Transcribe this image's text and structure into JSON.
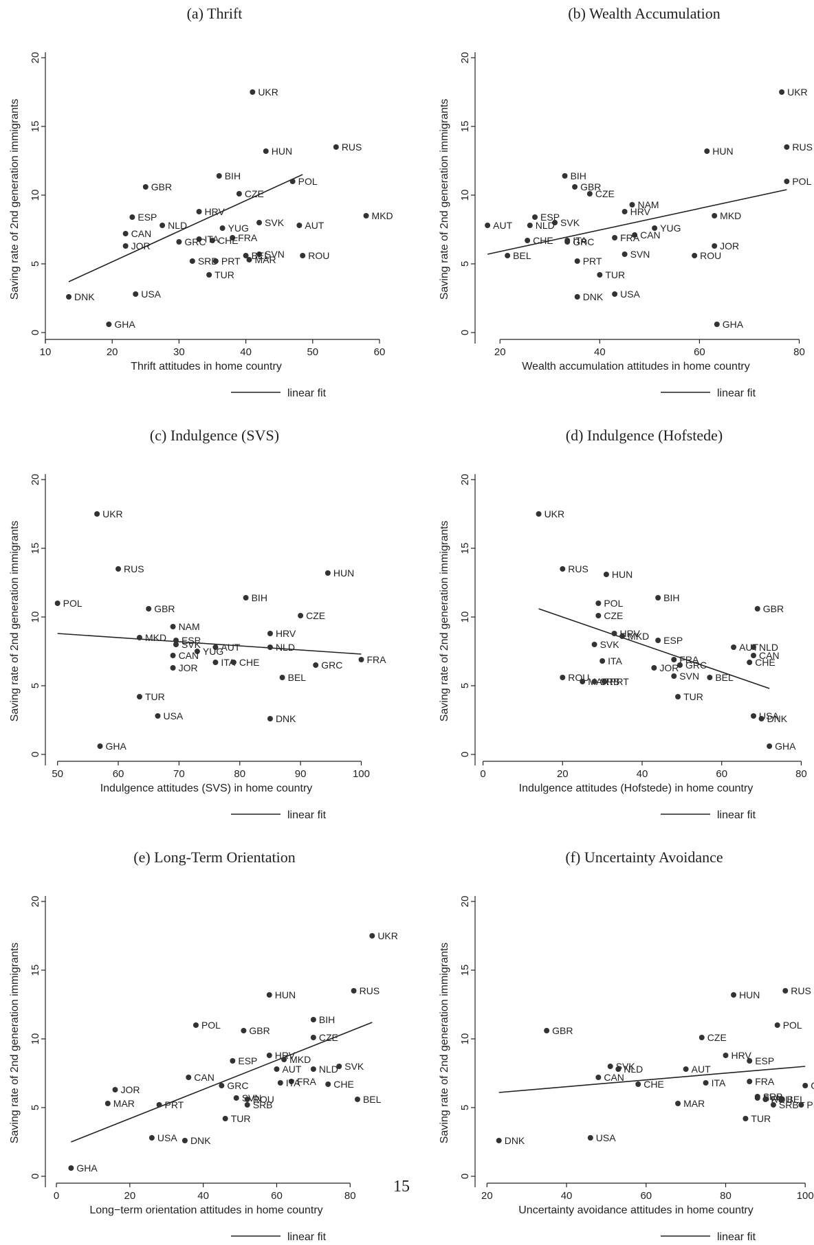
{
  "page_number": "15",
  "legend_label": "linear fit",
  "chart_data": [
    {
      "type": "scatter",
      "title": "(a) Thrift",
      "xlabel": "Thrift attitudes in home country",
      "ylabel": "Saving rate of 2nd generation immigrants",
      "xlim": [
        10,
        60
      ],
      "ylim": [
        0,
        20
      ],
      "xticks": [
        10,
        20,
        30,
        40,
        50,
        60
      ],
      "yticks": [
        0,
        5,
        10,
        15,
        20
      ],
      "fit": [
        [
          13.5,
          3.7
        ],
        [
          48.5,
          11.5
        ]
      ],
      "points": [
        {
          "label": "UKR",
          "x": 41,
          "y": 17.5
        },
        {
          "label": "RUS",
          "x": 53.5,
          "y": 13.5
        },
        {
          "label": "HUN",
          "x": 43,
          "y": 13.2
        },
        {
          "label": "BIH",
          "x": 36,
          "y": 11.4
        },
        {
          "label": "POL",
          "x": 47,
          "y": 11.0
        },
        {
          "label": "GBR",
          "x": 25,
          "y": 10.6
        },
        {
          "label": "CZE",
          "x": 39,
          "y": 10.1
        },
        {
          "label": "HRV",
          "x": 33,
          "y": 8.8
        },
        {
          "label": "MKD",
          "x": 58,
          "y": 8.5
        },
        {
          "label": "ESP",
          "x": 23,
          "y": 8.4
        },
        {
          "label": "SVK",
          "x": 42,
          "y": 8.0
        },
        {
          "label": "NLD",
          "x": 27.5,
          "y": 7.8
        },
        {
          "label": "AUT",
          "x": 48,
          "y": 7.8
        },
        {
          "label": "YUG",
          "x": 36.5,
          "y": 7.6
        },
        {
          "label": "CAN",
          "x": 22,
          "y": 7.2
        },
        {
          "label": "FRA",
          "x": 38,
          "y": 6.9
        },
        {
          "label": "ITA",
          "x": 33,
          "y": 6.8
        },
        {
          "label": "CHE",
          "x": 35,
          "y": 6.7
        },
        {
          "label": "GRC",
          "x": 30,
          "y": 6.6
        },
        {
          "label": "JOR",
          "x": 22,
          "y": 6.3
        },
        {
          "label": "SVN",
          "x": 42,
          "y": 5.7
        },
        {
          "label": "BEL",
          "x": 40,
          "y": 5.6
        },
        {
          "label": "ROU",
          "x": 48.5,
          "y": 5.6
        },
        {
          "label": "MAR",
          "x": 40.5,
          "y": 5.3
        },
        {
          "label": "SRB",
          "x": 32,
          "y": 5.2
        },
        {
          "label": "PRT",
          "x": 35.5,
          "y": 5.2
        },
        {
          "label": "TUR",
          "x": 34.5,
          "y": 4.2
        },
        {
          "label": "USA",
          "x": 23.5,
          "y": 2.8
        },
        {
          "label": "DNK",
          "x": 13.5,
          "y": 2.6
        },
        {
          "label": "GHA",
          "x": 19.5,
          "y": 0.6
        }
      ]
    },
    {
      "type": "scatter",
      "title": "(b) Wealth Accumulation",
      "xlabel": "Wealth accumulation attitudes in home country",
      "ylabel": "Saving rate of 2nd generation immigrants",
      "xlim": [
        15,
        82
      ],
      "ylim": [
        0,
        20
      ],
      "xticks": [
        20,
        40,
        60,
        80
      ],
      "yticks": [
        0,
        5,
        10,
        15,
        20
      ],
      "fit": [
        [
          17.5,
          5.7
        ],
        [
          77.5,
          10.4
        ]
      ],
      "points": [
        {
          "label": "UKR",
          "x": 76.5,
          "y": 17.5
        },
        {
          "label": "RUS",
          "x": 77.5,
          "y": 13.5
        },
        {
          "label": "HUN",
          "x": 61.5,
          "y": 13.2
        },
        {
          "label": "POL",
          "x": 77.5,
          "y": 11.0
        },
        {
          "label": "BIH",
          "x": 33,
          "y": 11.4
        },
        {
          "label": "GBR",
          "x": 35,
          "y": 10.6
        },
        {
          "label": "CZE",
          "x": 38,
          "y": 10.1
        },
        {
          "label": "NAM",
          "x": 46.5,
          "y": 9.3
        },
        {
          "label": "HRV",
          "x": 45,
          "y": 8.8
        },
        {
          "label": "MKD",
          "x": 63,
          "y": 8.5
        },
        {
          "label": "ESP",
          "x": 27,
          "y": 8.4
        },
        {
          "label": "SVK",
          "x": 31,
          "y": 8.0
        },
        {
          "label": "NLD",
          "x": 26,
          "y": 7.8
        },
        {
          "label": "AUT",
          "x": 17.5,
          "y": 7.8
        },
        {
          "label": "YUG",
          "x": 51,
          "y": 7.6
        },
        {
          "label": "CAN",
          "x": 47,
          "y": 7.1
        },
        {
          "label": "FRA",
          "x": 43,
          "y": 6.9
        },
        {
          "label": "CHE",
          "x": 25.5,
          "y": 6.7
        },
        {
          "label": "ITA",
          "x": 33.5,
          "y": 6.7
        },
        {
          "label": "GRC",
          "x": 33.5,
          "y": 6.6
        },
        {
          "label": "JOR",
          "x": 63,
          "y": 6.3
        },
        {
          "label": "SVN",
          "x": 45,
          "y": 5.7
        },
        {
          "label": "BEL",
          "x": 21.5,
          "y": 5.6
        },
        {
          "label": "ROU",
          "x": 59,
          "y": 5.6
        },
        {
          "label": "PRT",
          "x": 35.5,
          "y": 5.2
        },
        {
          "label": "TUR",
          "x": 40,
          "y": 4.2
        },
        {
          "label": "USA",
          "x": 43,
          "y": 2.8
        },
        {
          "label": "DNK",
          "x": 35.5,
          "y": 2.6
        },
        {
          "label": "GHA",
          "x": 63.5,
          "y": 0.6
        }
      ]
    },
    {
      "type": "scatter",
      "title": "(c) Indulgence (SVS)",
      "xlabel": "Indulgence attitudes (SVS) in home country",
      "ylabel": "Saving rate of 2nd generation immigrants",
      "xlim": [
        48,
        103
      ],
      "ylim": [
        0,
        20
      ],
      "xticks": [
        50,
        60,
        70,
        80,
        90,
        100
      ],
      "yticks": [
        0,
        5,
        10,
        15,
        20
      ],
      "fit": [
        [
          50,
          8.8
        ],
        [
          100,
          7.3
        ]
      ],
      "points": [
        {
          "label": "UKR",
          "x": 56.5,
          "y": 17.5
        },
        {
          "label": "RUS",
          "x": 60,
          "y": 13.5
        },
        {
          "label": "HUN",
          "x": 94.5,
          "y": 13.2
        },
        {
          "label": "BIH",
          "x": 81,
          "y": 11.4
        },
        {
          "label": "POL",
          "x": 50,
          "y": 11.0
        },
        {
          "label": "GBR",
          "x": 65,
          "y": 10.6
        },
        {
          "label": "CZE",
          "x": 90,
          "y": 10.1
        },
        {
          "label": "NAM",
          "x": 69,
          "y": 9.3
        },
        {
          "label": "HRV",
          "x": 85,
          "y": 8.8
        },
        {
          "label": "MKD",
          "x": 63.5,
          "y": 8.5
        },
        {
          "label": "ESP",
          "x": 69.5,
          "y": 8.3
        },
        {
          "label": "SVK",
          "x": 69.5,
          "y": 8.0
        },
        {
          "label": "NLD",
          "x": 85,
          "y": 7.8
        },
        {
          "label": "AUT",
          "x": 76,
          "y": 7.8
        },
        {
          "label": "YUG",
          "x": 73,
          "y": 7.5
        },
        {
          "label": "CAN",
          "x": 69,
          "y": 7.2
        },
        {
          "label": "FRA",
          "x": 100,
          "y": 6.9
        },
        {
          "label": "ITA",
          "x": 76,
          "y": 6.7
        },
        {
          "label": "CHE",
          "x": 79,
          "y": 6.7
        },
        {
          "label": "GRC",
          "x": 92.5,
          "y": 6.5
        },
        {
          "label": "JOR",
          "x": 69,
          "y": 6.3
        },
        {
          "label": "BEL",
          "x": 87,
          "y": 5.6
        },
        {
          "label": "TUR",
          "x": 63.5,
          "y": 4.2
        },
        {
          "label": "USA",
          "x": 66.5,
          "y": 2.8
        },
        {
          "label": "DNK",
          "x": 85,
          "y": 2.6
        },
        {
          "label": "GHA",
          "x": 57,
          "y": 0.6
        }
      ]
    },
    {
      "type": "scatter",
      "title": "(d) Indulgence (Hofstede)",
      "xlabel": "Indulgence attitudes (Hofstede) in home country",
      "ylabel": "Saving rate of 2nd generation immigrants",
      "xlim": [
        -2,
        82
      ],
      "ylim": [
        0,
        20
      ],
      "xticks": [
        0,
        20,
        40,
        60,
        80
      ],
      "yticks": [
        0,
        5,
        10,
        15,
        20
      ],
      "fit": [
        [
          14,
          10.6
        ],
        [
          72,
          4.8
        ]
      ],
      "points": [
        {
          "label": "UKR",
          "x": 14,
          "y": 17.5
        },
        {
          "label": "RUS",
          "x": 20,
          "y": 13.5
        },
        {
          "label": "HUN",
          "x": 31,
          "y": 13.1
        },
        {
          "label": "BIH",
          "x": 44,
          "y": 11.4
        },
        {
          "label": "GBR",
          "x": 69,
          "y": 10.6
        },
        {
          "label": "POL",
          "x": 29,
          "y": 11.0
        },
        {
          "label": "CZE",
          "x": 29,
          "y": 10.1
        },
        {
          "label": "HRV",
          "x": 33,
          "y": 8.8
        },
        {
          "label": "MKD",
          "x": 35,
          "y": 8.6
        },
        {
          "label": "ESP",
          "x": 44,
          "y": 8.3
        },
        {
          "label": "SVK",
          "x": 28,
          "y": 8.0
        },
        {
          "label": "AUT",
          "x": 63,
          "y": 7.8
        },
        {
          "label": "NLD",
          "x": 68,
          "y": 7.8
        },
        {
          "label": "CAN",
          "x": 68,
          "y": 7.2
        },
        {
          "label": "FRA",
          "x": 48,
          "y": 6.9
        },
        {
          "label": "ITA",
          "x": 30,
          "y": 6.8
        },
        {
          "label": "CHE",
          "x": 67,
          "y": 6.7
        },
        {
          "label": "GRC",
          "x": 49.5,
          "y": 6.5
        },
        {
          "label": "JOR",
          "x": 43,
          "y": 6.3
        },
        {
          "label": "SVN",
          "x": 48,
          "y": 5.7
        },
        {
          "label": "BEL",
          "x": 57,
          "y": 5.6
        },
        {
          "label": "ROU",
          "x": 20,
          "y": 5.6
        },
        {
          "label": "MAR",
          "x": 25,
          "y": 5.3
        },
        {
          "label": "SRB",
          "x": 28,
          "y": 5.3
        },
        {
          "label": "PRT",
          "x": 30.5,
          "y": 5.3
        },
        {
          "label": "TUR",
          "x": 49,
          "y": 4.2
        },
        {
          "label": "USA",
          "x": 68,
          "y": 2.8
        },
        {
          "label": "DNK",
          "x": 70,
          "y": 2.6
        },
        {
          "label": "GHA",
          "x": 72,
          "y": 0.6
        }
      ]
    },
    {
      "type": "scatter",
      "title": "(e) Long-Term Orientation",
      "xlabel": "Long−term orientation attitudes in home country",
      "ylabel": "Saving rate of 2nd generation immigrants",
      "xlim": [
        -3,
        88
      ],
      "ylim": [
        0,
        20
      ],
      "xticks": [
        0,
        20,
        40,
        60,
        80
      ],
      "yticks": [
        0,
        5,
        10,
        15,
        20
      ],
      "fit": [
        [
          4,
          2.5
        ],
        [
          86,
          11.2
        ]
      ],
      "points": [
        {
          "label": "UKR",
          "x": 86,
          "y": 17.5
        },
        {
          "label": "RUS",
          "x": 81,
          "y": 13.5
        },
        {
          "label": "HUN",
          "x": 58,
          "y": 13.2
        },
        {
          "label": "BIH",
          "x": 70,
          "y": 11.4
        },
        {
          "label": "POL",
          "x": 38,
          "y": 11.0
        },
        {
          "label": "GBR",
          "x": 51,
          "y": 10.6
        },
        {
          "label": "CZE",
          "x": 70,
          "y": 10.1
        },
        {
          "label": "HRV",
          "x": 58,
          "y": 8.8
        },
        {
          "label": "MKD",
          "x": 62,
          "y": 8.5
        },
        {
          "label": "ESP",
          "x": 48,
          "y": 8.4
        },
        {
          "label": "SVK",
          "x": 77,
          "y": 8.0
        },
        {
          "label": "AUT",
          "x": 60,
          "y": 7.8
        },
        {
          "label": "NLD",
          "x": 70,
          "y": 7.8
        },
        {
          "label": "CAN",
          "x": 36,
          "y": 7.2
        },
        {
          "label": "FRA",
          "x": 64,
          "y": 6.9
        },
        {
          "label": "ITA",
          "x": 61,
          "y": 6.8
        },
        {
          "label": "CHE",
          "x": 74,
          "y": 6.7
        },
        {
          "label": "GRC",
          "x": 45,
          "y": 6.6
        },
        {
          "label": "JOR",
          "x": 16,
          "y": 6.3
        },
        {
          "label": "SVN",
          "x": 49,
          "y": 5.7
        },
        {
          "label": "ROU",
          "x": 52,
          "y": 5.6
        },
        {
          "label": "BEL",
          "x": 82,
          "y": 5.6
        },
        {
          "label": "MAR",
          "x": 14,
          "y": 5.3
        },
        {
          "label": "SRB",
          "x": 52,
          "y": 5.2
        },
        {
          "label": "PRT",
          "x": 28,
          "y": 5.2
        },
        {
          "label": "TUR",
          "x": 46,
          "y": 4.2
        },
        {
          "label": "USA",
          "x": 26,
          "y": 2.8
        },
        {
          "label": "DNK",
          "x": 35,
          "y": 2.6
        },
        {
          "label": "GHA",
          "x": 4,
          "y": 0.6
        }
      ]
    },
    {
      "type": "scatter",
      "title": "(f) Uncertainty Avoidance",
      "xlabel": "Uncertainty avoidance attitudes in home country",
      "ylabel": "Saving rate of 2nd generation immigrants",
      "xlim": [
        17,
        101
      ],
      "ylim": [
        0,
        20
      ],
      "xticks": [
        20,
        40,
        60,
        80,
        100
      ],
      "yticks": [
        0,
        5,
        10,
        15,
        20
      ],
      "fit": [
        [
          23,
          6.1
        ],
        [
          100,
          8.0
        ]
      ],
      "points": [
        {
          "label": "RUS",
          "x": 95,
          "y": 13.5
        },
        {
          "label": "HUN",
          "x": 82,
          "y": 13.2
        },
        {
          "label": "POL",
          "x": 93,
          "y": 11.0
        },
        {
          "label": "GBR",
          "x": 35,
          "y": 10.6
        },
        {
          "label": "CZE",
          "x": 74,
          "y": 10.1
        },
        {
          "label": "HRV",
          "x": 80,
          "y": 8.8
        },
        {
          "label": "ESP",
          "x": 86,
          "y": 8.4
        },
        {
          "label": "SVK",
          "x": 51,
          "y": 8.0
        },
        {
          "label": "NLD",
          "x": 53,
          "y": 7.8
        },
        {
          "label": "AUT",
          "x": 70,
          "y": 7.8
        },
        {
          "label": "CAN",
          "x": 48,
          "y": 7.2
        },
        {
          "label": "FRA",
          "x": 86,
          "y": 6.9
        },
        {
          "label": "ITA",
          "x": 75,
          "y": 6.8
        },
        {
          "label": "CHE",
          "x": 58,
          "y": 6.7
        },
        {
          "label": "GRC",
          "x": 100,
          "y": 6.6
        },
        {
          "label": "SRB",
          "x": 88,
          "y": 5.8
        },
        {
          "label": "SVN",
          "x": 88,
          "y": 5.7
        },
        {
          "label": "ROU",
          "x": 90,
          "y": 5.6
        },
        {
          "label": "BEL",
          "x": 94,
          "y": 5.6
        },
        {
          "label": "MAR",
          "x": 68,
          "y": 5.3
        },
        {
          "label": "SRB",
          "x": 92,
          "y": 5.2
        },
        {
          "label": "PRT",
          "x": 99,
          "y": 5.2
        },
        {
          "label": "TUR",
          "x": 85,
          "y": 4.2
        },
        {
          "label": "USA",
          "x": 46,
          "y": 2.8
        },
        {
          "label": "DNK",
          "x": 23,
          "y": 2.6
        }
      ]
    }
  ]
}
